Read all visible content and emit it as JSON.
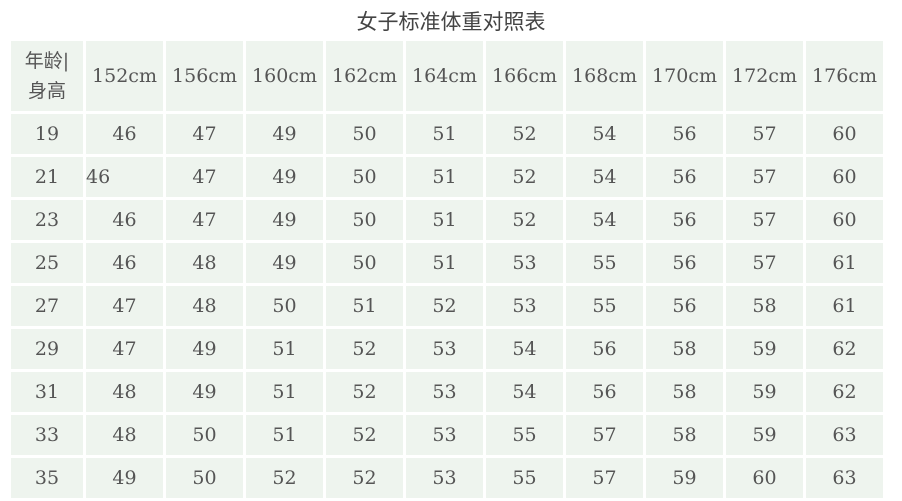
{
  "title": "女子标准体重对照表",
  "table": {
    "corner_line1": "年龄|",
    "corner_line2": "身高",
    "heights": [
      "152cm",
      "156cm",
      "160cm",
      "162cm",
      "164cm",
      "166cm",
      "168cm",
      "170cm",
      "172cm",
      "176cm"
    ],
    "rows": [
      {
        "age": "19",
        "values": [
          "46",
          "47",
          "49",
          "50",
          "51",
          "52",
          "54",
          "56",
          "57",
          "60"
        ]
      },
      {
        "age": "21",
        "values": [
          "46",
          "47",
          "49",
          "50",
          "51",
          "52",
          "54",
          "56",
          "57",
          "60"
        ]
      },
      {
        "age": "23",
        "values": [
          "46",
          "47",
          "49",
          "50",
          "51",
          "52",
          "54",
          "56",
          "57",
          "60"
        ]
      },
      {
        "age": "25",
        "values": [
          "46",
          "48",
          "49",
          "50",
          "51",
          "53",
          "55",
          "56",
          "57",
          "61"
        ]
      },
      {
        "age": "27",
        "values": [
          "47",
          "48",
          "50",
          "51",
          "52",
          "53",
          "55",
          "56",
          "58",
          "61"
        ]
      },
      {
        "age": "29",
        "values": [
          "47",
          "49",
          "51",
          "52",
          "53",
          "54",
          "56",
          "58",
          "59",
          "62"
        ]
      },
      {
        "age": "31",
        "values": [
          "48",
          "49",
          "51",
          "52",
          "53",
          "54",
          "56",
          "58",
          "59",
          "62"
        ]
      },
      {
        "age": "33",
        "values": [
          "48",
          "50",
          "51",
          "52",
          "53",
          "55",
          "57",
          "58",
          "59",
          "63"
        ]
      },
      {
        "age": "35",
        "values": [
          "49",
          "50",
          "52",
          "52",
          "53",
          "55",
          "57",
          "59",
          "60",
          "63"
        ]
      }
    ]
  },
  "colors": {
    "cell_background": "#eef4ee",
    "text": "#555555"
  }
}
